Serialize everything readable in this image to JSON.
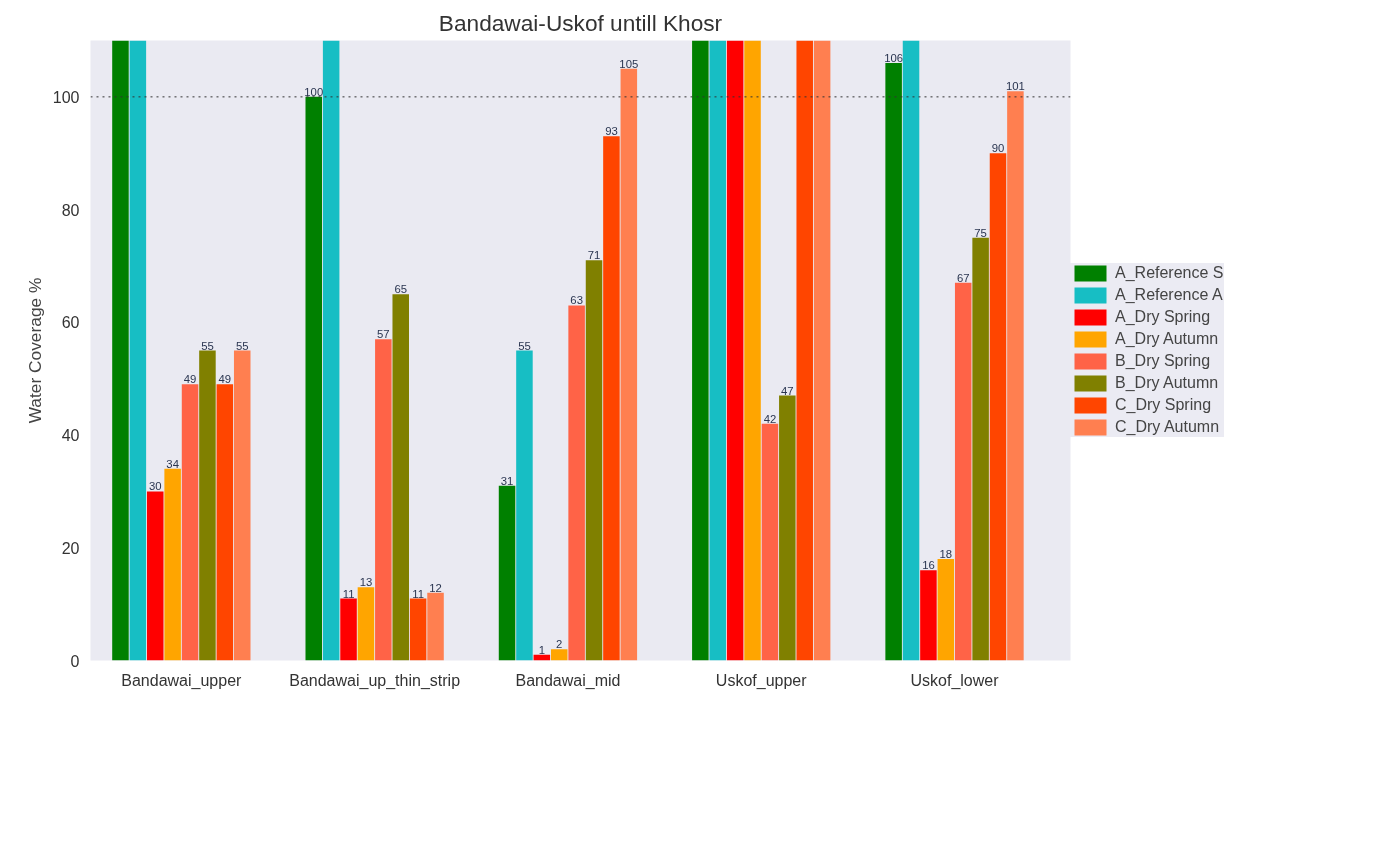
{
  "chart_data": {
    "type": "bar",
    "title": "Bandawai-Uskof untill Khosr",
    "ylabel": "Water Coverage %",
    "categories": [
      "Bandawai_upper",
      "Bandawai_up_thin_strip",
      "Bandawai_mid",
      "Uskof_upper",
      "Uskof_lower"
    ],
    "ylim": [
      0,
      110
    ],
    "yticks": [
      0,
      20,
      40,
      60,
      80,
      100
    ],
    "grid": false,
    "legend": "right",
    "ref_lines": [
      {
        "axis": "y",
        "value": 100,
        "color": "#333333",
        "line_style": "dotted"
      }
    ],
    "series": [
      {
        "name": "A_Reference S",
        "color": "#008000",
        "values": [
          110,
          100,
          31,
          110,
          106
        ],
        "value_labels": [
          null,
          "100",
          "31",
          null,
          "106"
        ]
      },
      {
        "name": "A_Reference A",
        "color": "#17bec4",
        "values": [
          110,
          110,
          55,
          110,
          110
        ],
        "value_labels": [
          null,
          null,
          "55",
          null,
          null
        ]
      },
      {
        "name": "A_Dry Spring",
        "color": "#ff0000",
        "values": [
          30,
          11,
          1,
          110,
          16
        ],
        "value_labels": [
          "30",
          "11",
          "1",
          null,
          "16"
        ]
      },
      {
        "name": "A_Dry Autumn",
        "color": "#ffa500",
        "values": [
          34,
          13,
          2,
          110,
          18
        ],
        "value_labels": [
          "34",
          "13",
          "2",
          null,
          "18"
        ]
      },
      {
        "name": "B_Dry Spring",
        "color": "#ff6347",
        "values": [
          49,
          57,
          63,
          42,
          67
        ],
        "value_labels": [
          "49",
          "57",
          "63",
          "42",
          "67"
        ]
      },
      {
        "name": "B_Dry Autumn",
        "color": "#808000",
        "values": [
          55,
          65,
          71,
          47,
          75
        ],
        "value_labels": [
          "55",
          "65",
          "71",
          "47",
          "75"
        ]
      },
      {
        "name": "C_Dry Spring",
        "color": "#ff4500",
        "values": [
          49,
          11,
          93,
          110,
          90
        ],
        "value_labels": [
          "49",
          "11",
          "93",
          null,
          "90"
        ]
      },
      {
        "name": "C_Dry Autumn",
        "color": "#ff7f50",
        "values": [
          55,
          12,
          105,
          110,
          101
        ],
        "value_labels": [
          "55",
          "12",
          "105",
          null,
          "101"
        ]
      }
    ]
  }
}
